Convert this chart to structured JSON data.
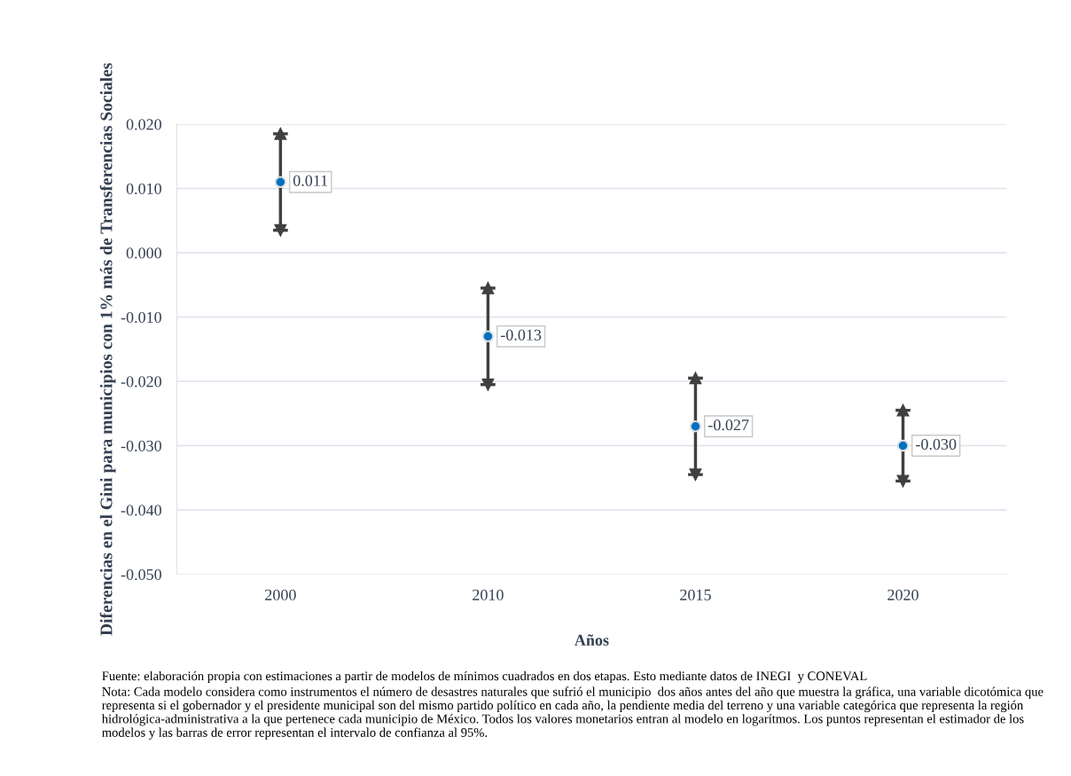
{
  "chart_data": {
    "type": "scatter",
    "xlabel": "Años",
    "ylabel": "Diferencias en el Gini para municipios con 1% más de Transferencias Sociales",
    "categories": [
      "2000",
      "2010",
      "2015",
      "2020"
    ],
    "series": [
      {
        "color": "#0070c0",
        "values": [
          0.011,
          -0.013,
          -0.027,
          -0.03
        ],
        "errors": [
          0.0075,
          0.0075,
          0.0075,
          0.0055
        ]
      }
    ],
    "value_labels": [
      "0.011",
      "-0.013",
      "-0.027",
      "-0.030"
    ],
    "marker": "circle",
    "ylim": [
      -0.05,
      0.02
    ],
    "yticks": [
      {
        "value": -0.05,
        "label": "-0.050"
      },
      {
        "value": -0.04,
        "label": "-0.040"
      },
      {
        "value": -0.03,
        "label": "-0.030"
      },
      {
        "value": -0.02,
        "label": "-0.020"
      },
      {
        "value": -0.01,
        "label": "-0.010"
      },
      {
        "value": 0,
        "label": "0.000"
      },
      {
        "value": 0.01,
        "label": "0.010"
      },
      {
        "value": 0.02,
        "label": "0.020"
      }
    ],
    "grid": "y",
    "annotations": [
      "Fuente: elaboración propia con estimaciones a partir de modelos de mínimos cuadrados en dos etapas. Esto mediante datos de INEGI  y CONEVAL",
      "Nota: Cada modelo considera como instrumentos el número de desastres naturales que sufrió el municipio  dos años antes del año que muestra la gráfica, una variable dicotómica que representa si el gobernador y el presidente municipal son del mismo partido político en cada año, la pendiente media del terreno y una variable categórica que representa la región hidrológica-administrativa a la que pertenece cada municipio de México. Todos los valores monetarios entran al modelo en logarítmos. Los puntos representan el estimador de los modelos y las barras de error representan el intervalo de confianza al 95%."
    ]
  }
}
